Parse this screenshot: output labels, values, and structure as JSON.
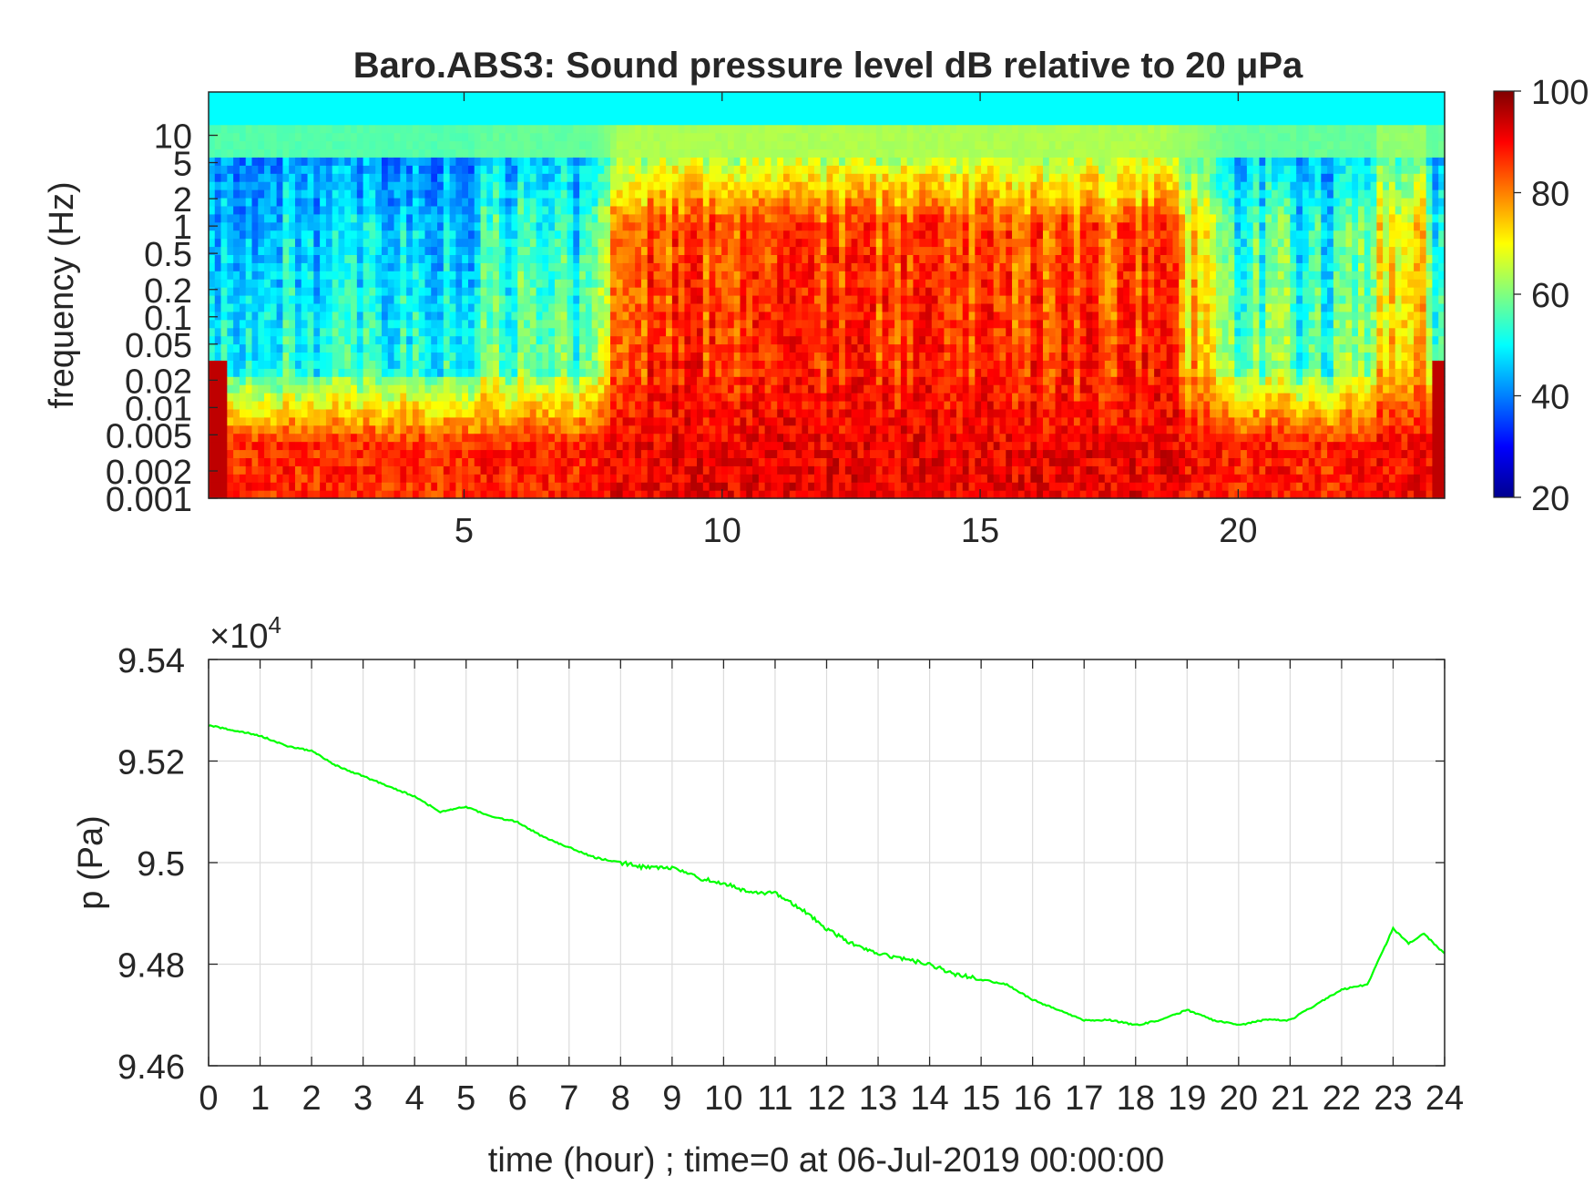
{
  "chart_data": [
    {
      "type": "heatmap",
      "title": "Baro.ABS3: Sound pressure level dB relative to 20 μPa",
      "xlabel": "",
      "ylabel": "frequency (Hz)",
      "x_ticks": [
        5,
        10,
        15,
        20
      ],
      "xlim": [
        0.05,
        24
      ],
      "y_scale": "log",
      "y_ticks": [
        0.001,
        0.002,
        0.005,
        0.01,
        0.02,
        0.05,
        0.1,
        0.2,
        0.5,
        1,
        2,
        5,
        10
      ],
      "ylim": [
        0.001,
        30
      ],
      "colormap": "jet",
      "colorbar": {
        "ticks": [
          20,
          40,
          60,
          80,
          100
        ],
        "range": [
          20,
          100
        ]
      },
      "description_levels": {
        "quiet_hours_0_to_7_5": "40-55 dB above 0.05 Hz, 80-95 dB below 0.005 Hz",
        "active_hours_7_5_to_19": "80-100 dB from 0.001 Hz up to ~1 Hz, 55-70 dB near 5 Hz",
        "late_hours_19_to_24": "45-60 dB above 0.1 Hz with a burst near hour 23"
      },
      "grid": false
    },
    {
      "type": "line",
      "xlabel": "time (hour) ; time=0 at 06-Jul-2019 00:00:00",
      "ylabel": "p (Pa)",
      "multiplier": "×10",
      "multiplier_exp": "4",
      "xlim": [
        0,
        24
      ],
      "ylim": [
        9.46,
        9.54
      ],
      "x_ticks": [
        0,
        1,
        2,
        3,
        4,
        5,
        6,
        7,
        8,
        9,
        10,
        11,
        12,
        13,
        14,
        15,
        16,
        17,
        18,
        19,
        20,
        21,
        22,
        23,
        24
      ],
      "y_ticks": [
        9.46,
        9.48,
        9.5,
        9.52,
        9.54
      ],
      "y_tick_labels": [
        "9.46",
        "9.48",
        "9.5",
        "9.52",
        "9.54"
      ],
      "grid": true,
      "series": [
        {
          "color": "#00ff00",
          "x": [
            0,
            0.5,
            1,
            1.5,
            2,
            2.5,
            3,
            3.5,
            4,
            4.5,
            5,
            5.5,
            6,
            6.5,
            7,
            7.5,
            8,
            8.5,
            9,
            9.5,
            10,
            10.5,
            11,
            11.5,
            12,
            12.5,
            13,
            13.5,
            14,
            14.5,
            15,
            15.5,
            16,
            16.5,
            17,
            17.5,
            18,
            18.5,
            19,
            19.5,
            20,
            20.5,
            21,
            21.5,
            22,
            22.5,
            23,
            23.3,
            23.6,
            24
          ],
          "y": [
            9.527,
            9.526,
            9.525,
            9.523,
            9.522,
            9.519,
            9.517,
            9.515,
            9.513,
            9.51,
            9.511,
            9.509,
            9.508,
            9.505,
            9.503,
            9.501,
            9.5,
            9.499,
            9.499,
            9.497,
            9.496,
            9.494,
            9.494,
            9.491,
            9.487,
            9.484,
            9.482,
            9.481,
            9.48,
            9.478,
            9.477,
            9.476,
            9.473,
            9.471,
            9.469,
            9.469,
            9.468,
            9.469,
            9.471,
            9.469,
            9.468,
            9.469,
            9.469,
            9.472,
            9.475,
            9.476,
            9.487,
            9.484,
            9.486,
            9.482
          ]
        }
      ]
    }
  ]
}
